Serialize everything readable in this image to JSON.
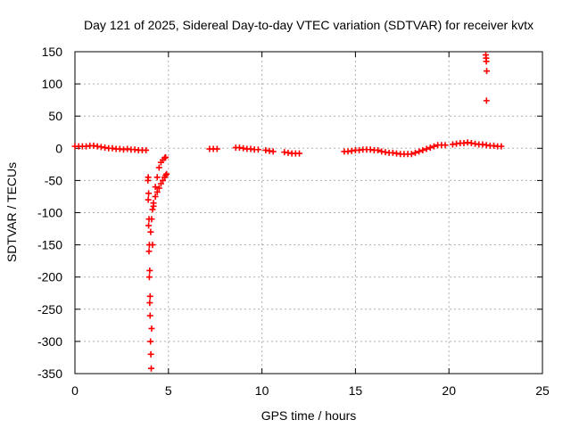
{
  "chart_data": {
    "type": "scatter",
    "title": "Day 121 of 2025, Sidereal Day-to-day VTEC variation (SDTVAR) for receiver kvtx",
    "xlabel": "GPS time / hours",
    "ylabel": "SDTVAR / TECUs",
    "xlim": [
      0,
      25
    ],
    "ylim": [
      -350,
      150
    ],
    "xticks": [
      0,
      5,
      10,
      15,
      20,
      25
    ],
    "yticks": [
      -350,
      -300,
      -250,
      -200,
      -150,
      -100,
      -50,
      0,
      50,
      100,
      150
    ],
    "grid": true,
    "marker": "+",
    "colors": {
      "series": "#ff0000",
      "grid": "#b0b0b0",
      "axis": "#000000"
    },
    "series": [
      {
        "name": "SDTVAR",
        "x": [
          0.0,
          0.2,
          0.4,
          0.6,
          0.8,
          1.0,
          1.2,
          1.4,
          1.6,
          1.8,
          2.0,
          2.2,
          2.4,
          2.6,
          2.8,
          3.0,
          3.2,
          3.4,
          3.6,
          3.8,
          3.9,
          3.92,
          3.94,
          3.96,
          3.98,
          4.0,
          4.02,
          4.04,
          4.06,
          4.08,
          4.1,
          4.15,
          4.2,
          4.3,
          4.4,
          4.5,
          4.6,
          4.7,
          4.8,
          4.85,
          3.92,
          3.94,
          3.96,
          3.98,
          4.0,
          4.02,
          4.05,
          4.1,
          4.15,
          4.2,
          4.3,
          4.4,
          4.5,
          4.6,
          4.7,
          4.8,
          4.85,
          4.9,
          7.2,
          7.4,
          7.6,
          8.6,
          8.8,
          9.0,
          9.2,
          9.4,
          9.6,
          9.8,
          10.2,
          10.4,
          10.6,
          11.2,
          11.4,
          11.6,
          11.8,
          12.0,
          14.4,
          14.6,
          14.8,
          15.0,
          15.2,
          15.4,
          15.6,
          15.8,
          16.0,
          16.2,
          16.4,
          16.6,
          16.8,
          17.0,
          17.2,
          17.4,
          17.6,
          17.8,
          18.0,
          18.2,
          18.4,
          18.6,
          18.8,
          19.0,
          19.2,
          19.4,
          19.6,
          19.8,
          20.2,
          20.4,
          20.6,
          20.8,
          21.0,
          21.2,
          21.4,
          21.6,
          21.8,
          22.0,
          22.2,
          22.4,
          22.6,
          22.8,
          21.97,
          21.99,
          22.0,
          22.02,
          22.01
        ],
        "y": [
          3,
          3,
          3,
          3,
          4,
          4,
          3,
          2,
          1,
          0,
          0,
          -1,
          -1,
          -2,
          -1,
          -2,
          -2,
          -3,
          -3,
          -3,
          -50,
          -80,
          -120,
          -160,
          -200,
          -240,
          -260,
          -300,
          -320,
          -342,
          -280,
          -150,
          -90,
          -60,
          -45,
          -30,
          -22,
          -18,
          -15,
          -14,
          -45,
          -70,
          -110,
          -150,
          -190,
          -230,
          -130,
          -110,
          -95,
          -85,
          -75,
          -68,
          -62,
          -55,
          -50,
          -45,
          -42,
          -40,
          -1,
          -1,
          -1,
          1,
          1,
          0,
          -1,
          -1,
          -2,
          -2,
          -3,
          -4,
          -5,
          -6,
          -7,
          -8,
          -8,
          -8,
          -5,
          -5,
          -4,
          -3,
          -3,
          -2,
          -2,
          -2,
          -3,
          -3,
          -5,
          -6,
          -7,
          -7,
          -8,
          -9,
          -9,
          -9,
          -9,
          -7,
          -5,
          -3,
          -1,
          1,
          3,
          5,
          5,
          5,
          6,
          7,
          8,
          8,
          9,
          8,
          7,
          6,
          6,
          5,
          4,
          4,
          3,
          3,
          145,
          140,
          135,
          120,
          74
        ]
      }
    ]
  }
}
